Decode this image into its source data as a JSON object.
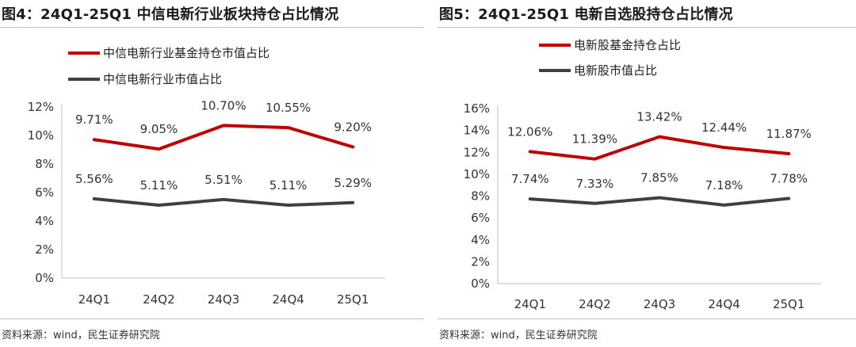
{
  "chart_data": [
    {
      "type": "line",
      "title": "图4：24Q1-25Q1 中信电新行业板块持仓占比情况",
      "source": "资料来源：wind，民生证券研究院",
      "categories": [
        "24Q1",
        "24Q2",
        "24Q3",
        "24Q4",
        "25Q1"
      ],
      "ylim": [
        0,
        12
      ],
      "yticks": [
        "0%",
        "2%",
        "4%",
        "6%",
        "8%",
        "10%",
        "12%"
      ],
      "legend_position": "top",
      "series": [
        {
          "name": "中信电新行业基金持仓市值占比",
          "color": "#c00000",
          "values": [
            9.71,
            9.05,
            10.7,
            10.55,
            9.2
          ],
          "labels": [
            "9.71%",
            "9.05%",
            "10.70%",
            "10.55%",
            "9.20%"
          ]
        },
        {
          "name": "中信电新行业市值占比",
          "color": "#404040",
          "values": [
            5.56,
            5.11,
            5.51,
            5.11,
            5.29
          ],
          "labels": [
            "5.56%",
            "5.11%",
            "5.51%",
            "5.11%",
            "5.29%"
          ]
        }
      ]
    },
    {
      "type": "line",
      "title": "图5：24Q1-25Q1 电新自选股持仓占比情况",
      "source": "资料来源：wind，民生证券研究院",
      "categories": [
        "24Q1",
        "24Q2",
        "24Q3",
        "24Q4",
        "25Q1"
      ],
      "ylim": [
        0,
        16
      ],
      "yticks": [
        "0%",
        "2%",
        "4%",
        "6%",
        "8%",
        "10%",
        "12%",
        "14%",
        "16%"
      ],
      "legend_position": "top",
      "series": [
        {
          "name": "电新股基金持仓占比",
          "color": "#c00000",
          "values": [
            12.06,
            11.39,
            13.42,
            12.44,
            11.87
          ],
          "labels": [
            "12.06%",
            "11.39%",
            "13.42%",
            "12.44%",
            "11.87%"
          ]
        },
        {
          "name": "电新股市值占比",
          "color": "#404040",
          "values": [
            7.74,
            7.33,
            7.85,
            7.18,
            7.78
          ],
          "labels": [
            "7.74%",
            "7.33%",
            "7.85%",
            "7.18%",
            "7.78%"
          ]
        }
      ]
    }
  ]
}
